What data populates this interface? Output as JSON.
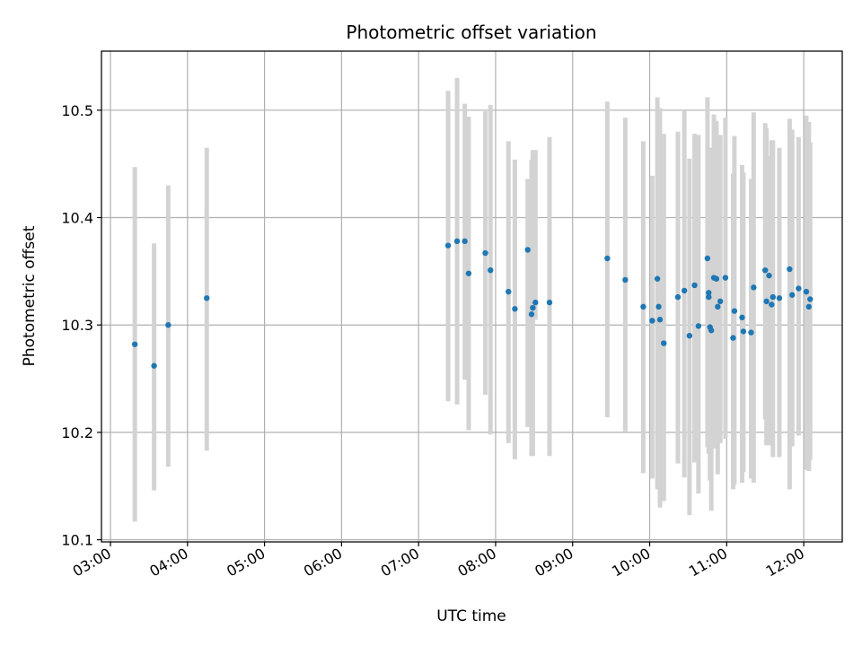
{
  "chart_data": {
    "type": "scatter",
    "title": "Photometric offset variation",
    "xlabel": "UTC time",
    "ylabel": "Photometric offset",
    "grid": true,
    "xlim": [
      "02:53",
      "12:30"
    ],
    "ylim": [
      10.098,
      10.555
    ],
    "x_ticks": [
      "03:00",
      "04:00",
      "05:00",
      "06:00",
      "07:00",
      "08:00",
      "09:00",
      "10:00",
      "11:00",
      "12:00"
    ],
    "y_ticks": [
      10.1,
      10.2,
      10.3,
      10.4,
      10.5
    ],
    "y_tick_labels": [
      "10.1",
      "10.2",
      "10.3",
      "10.4",
      "10.5"
    ],
    "colors": {
      "points": "#1f77b4",
      "error_bars": "#d3d3d3",
      "grid": "#b0b0b0"
    },
    "series": [
      {
        "x": [
          "03:19",
          "03:34",
          "03:45",
          "04:15",
          "07:23",
          "07:30",
          "07:36",
          "07:39",
          "07:52",
          "07:56",
          "08:10",
          "08:15",
          "08:25",
          "08:28",
          "08:29",
          "08:31",
          "08:42",
          "09:27",
          "09:41",
          "09:55",
          "10:02",
          "10:06",
          "10:07",
          "10:08",
          "10:11",
          "10:22",
          "10:27",
          "10:31",
          "10:35",
          "10:38",
          "10:45",
          "10:46",
          "10:46",
          "10:47",
          "10:48",
          "10:50",
          "10:52",
          "10:53",
          "10:55",
          "10:59",
          "11:05",
          "11:06",
          "11:12",
          "11:13",
          "11:19",
          "11:21",
          "11:30",
          "11:31",
          "11:33",
          "11:35",
          "11:36",
          "11:41",
          "11:49",
          "11:51",
          "11:56",
          "12:02",
          "12:04",
          "12:05"
        ],
        "y": [
          10.282,
          10.262,
          10.3,
          10.325,
          10.374,
          10.378,
          10.378,
          10.348,
          10.367,
          10.351,
          10.331,
          10.315,
          10.37,
          10.31,
          10.316,
          10.321,
          10.321,
          10.362,
          10.342,
          10.317,
          10.304,
          10.343,
          10.317,
          10.305,
          10.283,
          10.326,
          10.332,
          10.29,
          10.337,
          10.299,
          10.362,
          10.326,
          10.33,
          10.298,
          10.295,
          10.344,
          10.343,
          10.317,
          10.322,
          10.344,
          10.288,
          10.313,
          10.307,
          10.294,
          10.293,
          10.335,
          10.351,
          10.322,
          10.346,
          10.319,
          10.326,
          10.325,
          10.352,
          10.328,
          10.334,
          10.331,
          10.317,
          10.324
        ],
        "yerr_low": [
          10.117,
          10.146,
          10.168,
          10.183,
          10.229,
          10.226,
          10.249,
          10.202,
          10.235,
          10.198,
          10.19,
          10.175,
          10.205,
          10.178,
          10.178,
          10.305,
          10.178,
          10.214,
          10.201,
          10.162,
          10.157,
          10.147,
          10.173,
          10.13,
          10.136,
          10.171,
          10.158,
          10.123,
          10.172,
          10.143,
          10.186,
          10.18,
          10.187,
          10.155,
          10.127,
          10.185,
          10.189,
          10.161,
          10.19,
          10.194,
          10.147,
          10.151,
          10.153,
          10.163,
          10.157,
          10.153,
          10.212,
          10.188,
          10.188,
          10.189,
          10.177,
          10.177,
          10.147,
          10.187,
          10.197,
          10.165,
          10.164,
          10.174
        ],
        "yerr_high": [
          10.447,
          10.376,
          10.43,
          10.465,
          10.518,
          10.53,
          10.506,
          10.494,
          10.499,
          10.505,
          10.471,
          10.454,
          10.436,
          10.454,
          10.463,
          10.463,
          10.475,
          10.508,
          10.493,
          10.471,
          10.439,
          10.512,
          10.461,
          10.502,
          10.478,
          10.48,
          10.5,
          10.455,
          10.478,
          10.477,
          10.512,
          10.461,
          10.465,
          10.465,
          10.465,
          10.496,
          10.49,
          10.459,
          10.477,
          10.493,
          10.441,
          10.476,
          10.449,
          10.442,
          10.436,
          10.498,
          10.488,
          10.483,
          10.457,
          10.472,
          10.472,
          10.465,
          10.492,
          10.482,
          10.475,
          10.495,
          10.489,
          10.47
        ]
      }
    ]
  }
}
